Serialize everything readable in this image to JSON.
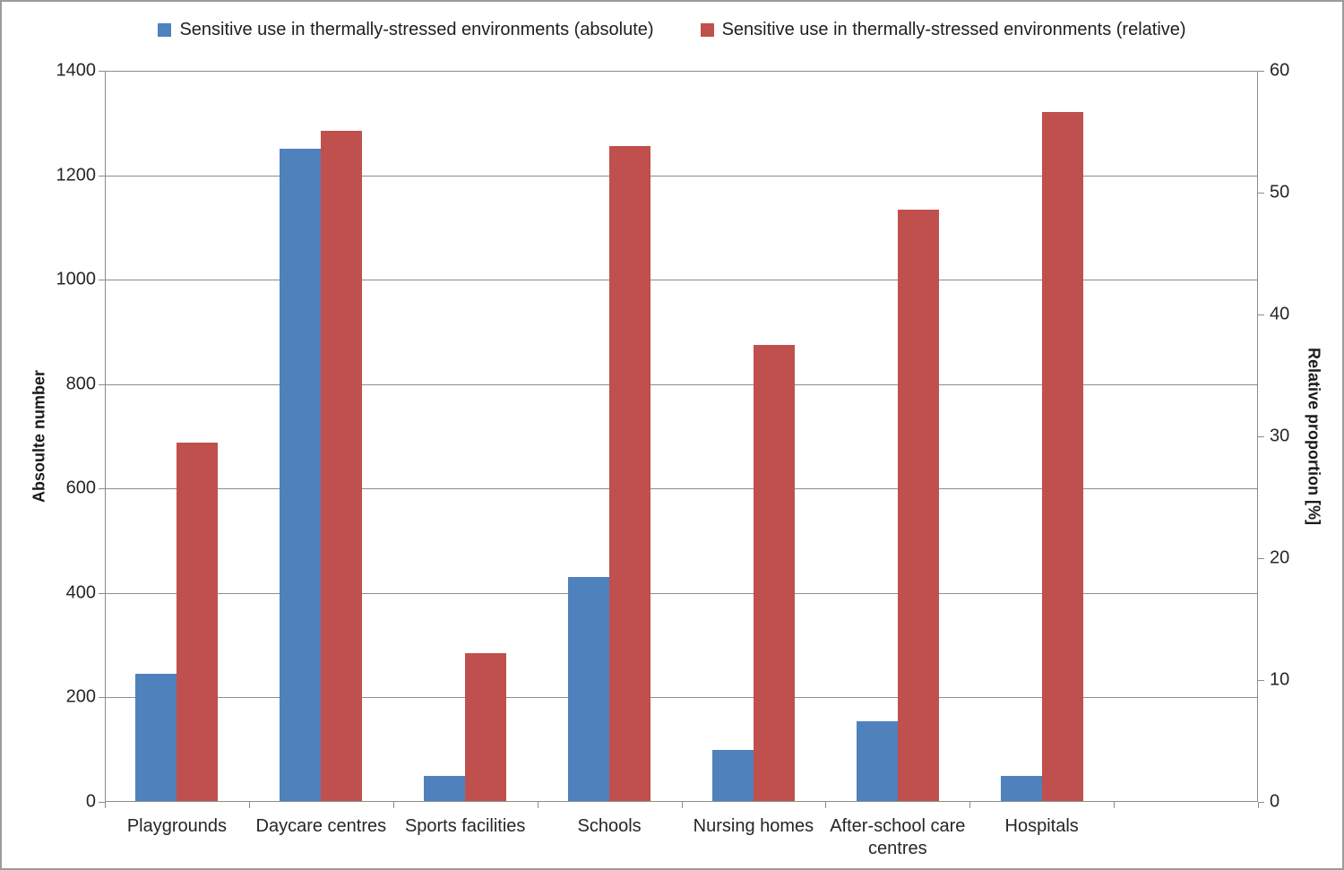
{
  "legend": {
    "entries": [
      {
        "label": "Sensitive use in thermally-stressed environments (absolute)",
        "color": "#4F81BD"
      },
      {
        "label": "Sensitive use in thermally-stressed environments (relative)",
        "color": "#C0504D"
      }
    ]
  },
  "chart_data": {
    "type": "bar",
    "categories": [
      "Playgrounds",
      "Daycare centres",
      "Sports facilities",
      "Schools",
      "Nursing homes",
      "After-school care centres",
      "Hospitals"
    ],
    "series": [
      {
        "name": "Sensitive use in thermally-stressed environments (absolute)",
        "axis": "left",
        "color": "#4F81BD",
        "values": [
          245,
          1250,
          50,
          430,
          100,
          155,
          50
        ]
      },
      {
        "name": "Sensitive use in thermally-stressed environments (relative)",
        "axis": "right",
        "color": "#C0504D",
        "values": [
          29.5,
          55.1,
          12.2,
          53.8,
          37.5,
          48.6,
          56.6
        ]
      }
    ],
    "left_axis": {
      "title": "Absoulte number",
      "min": 0,
      "max": 1400,
      "tick_labels": [
        "0",
        "200",
        "400",
        "600",
        "800",
        "1000",
        "1200",
        "1400"
      ]
    },
    "right_axis": {
      "title": "Relative proportion [%]",
      "min": 0,
      "max": 60,
      "tick_labels": [
        "0",
        "10",
        "20",
        "30",
        "40",
        "50",
        "60"
      ]
    },
    "trailing_empty_slots": 1,
    "grid": "horizontal",
    "legend_position": "top",
    "plot_background": "#ffffff"
  }
}
